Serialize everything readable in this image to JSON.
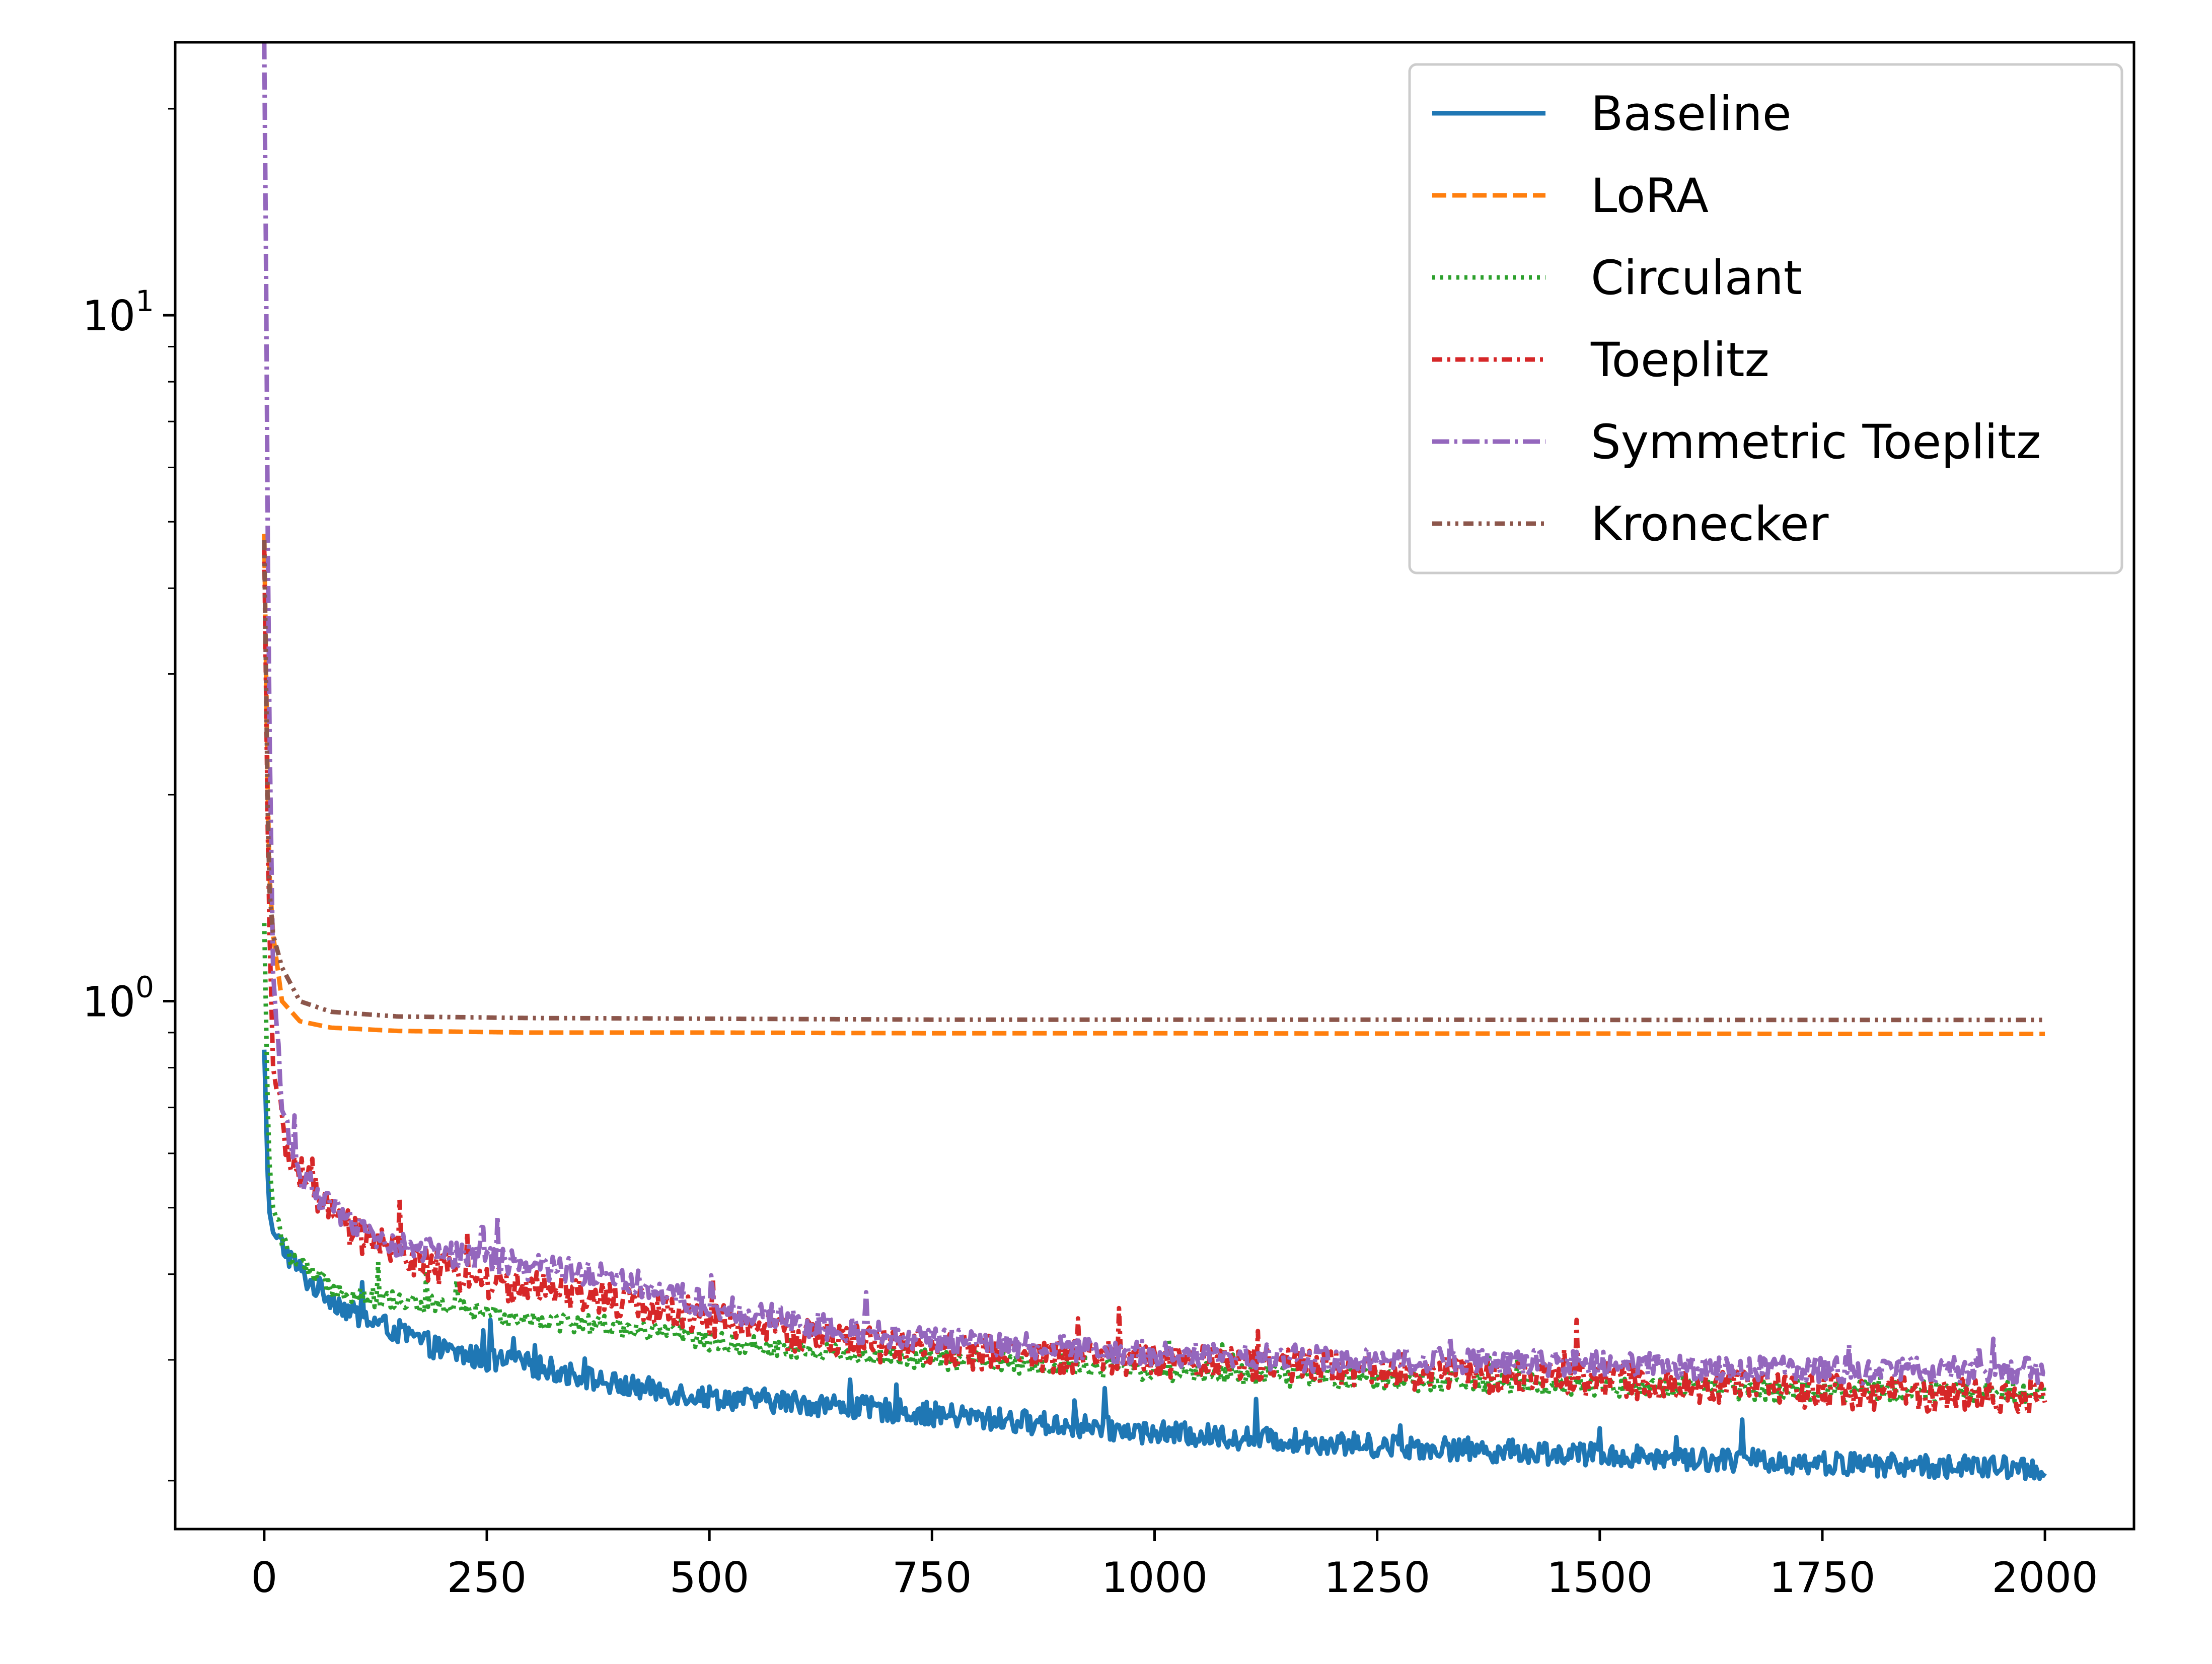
{
  "chart_data": {
    "type": "line",
    "title": "",
    "xlabel": "",
    "ylabel": "",
    "xscale": "linear",
    "yscale": "log",
    "xlim": [
      -100,
      2100
    ],
    "ylim": [
      0.17,
      25
    ],
    "x_ticks": [
      0,
      250,
      500,
      750,
      1000,
      1250,
      1500,
      1750,
      2000
    ],
    "x_tick_labels": [
      "0",
      "250",
      "500",
      "750",
      "1000",
      "1250",
      "1500",
      "1750",
      "2000"
    ],
    "y_ticks": [
      1,
      10
    ],
    "y_tick_labels": [
      {
        "base": "10",
        "exp": "0"
      },
      {
        "base": "10",
        "exp": "1"
      }
    ],
    "grid": false,
    "legend_position": "top-right",
    "series": [
      {
        "name": "Baseline",
        "color": "#1f77b4",
        "dash": "solid",
        "x": [
          0,
          5,
          10,
          25,
          50,
          75,
          100,
          150,
          200,
          250,
          300,
          350,
          400,
          450,
          500,
          600,
          750,
          1000,
          1250,
          1500,
          1750,
          2000
        ],
        "y": [
          0.85,
          0.5,
          0.46,
          0.43,
          0.39,
          0.37,
          0.35,
          0.33,
          0.31,
          0.3,
          0.295,
          0.285,
          0.275,
          0.27,
          0.265,
          0.26,
          0.25,
          0.235,
          0.225,
          0.218,
          0.212,
          0.208
        ],
        "noise": 0.04
      },
      {
        "name": "LoRA",
        "color": "#ff7f0e",
        "dash": "dashed",
        "x": [
          0,
          5,
          10,
          20,
          40,
          75,
          150,
          300,
          500,
          750,
          1000,
          1250,
          1500,
          1750,
          2000
        ],
        "y": [
          4.8,
          1.6,
          1.25,
          1.0,
          0.935,
          0.915,
          0.905,
          0.9,
          0.9,
          0.898,
          0.898,
          0.897,
          0.897,
          0.896,
          0.896
        ],
        "noise": 0.0
      },
      {
        "name": "Circulant",
        "color": "#2ca02c",
        "dash": "dotted",
        "x": [
          0,
          5,
          10,
          25,
          50,
          75,
          100,
          150,
          200,
          250,
          300,
          400,
          500,
          600,
          750,
          1000,
          1250,
          1500,
          1750,
          2000
        ],
        "y": [
          1.3,
          0.6,
          0.5,
          0.43,
          0.4,
          0.385,
          0.375,
          0.365,
          0.36,
          0.35,
          0.345,
          0.335,
          0.32,
          0.31,
          0.3,
          0.29,
          0.28,
          0.275,
          0.27,
          0.27
        ],
        "noise": 0.035
      },
      {
        "name": "Toeplitz",
        "color": "#d62728",
        "dash": "dashdotted",
        "x": [
          0,
          5,
          10,
          25,
          50,
          75,
          100,
          150,
          200,
          250,
          300,
          400,
          500,
          600,
          750,
          1000,
          1250,
          1500,
          1750,
          2000
        ],
        "y": [
          4.6,
          1.4,
          0.8,
          0.6,
          0.54,
          0.49,
          0.46,
          0.43,
          0.405,
          0.39,
          0.38,
          0.365,
          0.345,
          0.325,
          0.31,
          0.3,
          0.29,
          0.28,
          0.27,
          0.265
        ],
        "noise": 0.06
      },
      {
        "name": "Symmetric Toeplitz",
        "color": "#9467bd",
        "dash": "dashdot",
        "x": [
          0,
          2,
          5,
          10,
          20,
          40,
          75,
          100,
          150,
          200,
          250,
          300,
          350,
          400,
          500,
          600,
          750,
          1000,
          1250,
          1500,
          1750,
          2000
        ],
        "y": [
          25,
          12,
          3.0,
          1.1,
          0.7,
          0.56,
          0.5,
          0.47,
          0.44,
          0.43,
          0.42,
          0.41,
          0.405,
          0.395,
          0.36,
          0.34,
          0.32,
          0.305,
          0.3,
          0.295,
          0.29,
          0.29
        ],
        "noise": 0.045
      },
      {
        "name": "Kronecker",
        "color": "#8c564b",
        "dash": "dashdotdotted",
        "x": [
          0,
          5,
          10,
          20,
          40,
          75,
          150,
          300,
          500,
          750,
          1000,
          1250,
          1500,
          1750,
          2000
        ],
        "y": [
          4.7,
          1.5,
          1.25,
          1.12,
          1.0,
          0.965,
          0.95,
          0.945,
          0.943,
          0.94,
          0.94,
          0.94,
          0.939,
          0.939,
          0.939
        ],
        "noise": 0.0
      }
    ]
  }
}
